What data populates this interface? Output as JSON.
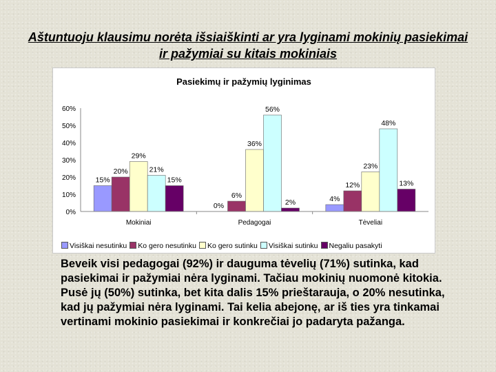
{
  "slide": {
    "title": "Aštuntuoju klausimu norėta išsiaiškinti ar yra lyginami mokinių pasiekimai ir pažymiai su kitais mokiniais",
    "body": "Beveik visi pedagogai (92%) ir dauguma tėvelių (71%) sutinka, kad pasiekimai ir pažymiai nėra lyginami. Tačiau mokinių nuomonė kitokia. Pusė jų (50%) sutinka, bet kita dalis 15% prieštarauja, o 20% nesutinka, kad jų pažymiai nėra lyginami. Tai kelia abejonę, ar iš ties yra tinkamai vertinami mokinio pasiekimai ir konkrečiai jo padaryta pažanga."
  },
  "chart_data": {
    "type": "bar",
    "title": "Pasiekimų ir pažymių lyginimas",
    "categories": [
      "Mokiniai",
      "Pedagogai",
      "Tėveliai"
    ],
    "series": [
      {
        "name": "Visiškai nesutinku",
        "values": [
          15,
          0,
          4
        ],
        "labels": [
          "15%",
          "0%",
          "4%"
        ],
        "color": "#9999ff"
      },
      {
        "name": "Ko gero nesutinku",
        "values": [
          20,
          6,
          12
        ],
        "labels": [
          "20%",
          "6%",
          "12%"
        ],
        "color": "#993366"
      },
      {
        "name": "Ko gero sutinku",
        "values": [
          29,
          36,
          23
        ],
        "labels": [
          "29%",
          "36%",
          "23%"
        ],
        "color": "#ffffcc"
      },
      {
        "name": "Visiškai sutinku",
        "values": [
          21,
          56,
          48
        ],
        "labels": [
          "21%",
          "56%",
          "48%"
        ],
        "color": "#ccffff"
      },
      {
        "name": "Negaliu pasakyti",
        "values": [
          15,
          2,
          13
        ],
        "labels": [
          "15%",
          "2%",
          "13%"
        ],
        "color": "#660066"
      }
    ],
    "y_ticks": [
      "0%",
      "10%",
      "20%",
      "30%",
      "40%",
      "50%",
      "60%"
    ],
    "ylim": [
      0,
      60
    ],
    "xlabel": "",
    "ylabel": "",
    "grid": false,
    "legend_position": "bottom"
  }
}
